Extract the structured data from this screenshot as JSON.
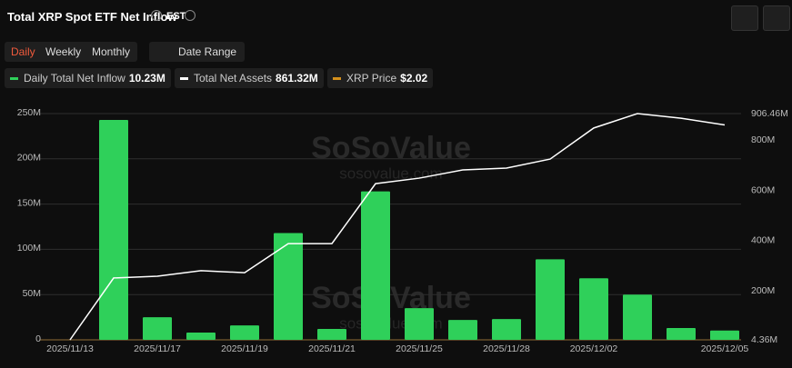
{
  "header": {
    "title": "Total XRP Spot ETF Net Inflow",
    "timezone": "EST"
  },
  "controls": {
    "periods": [
      "Daily",
      "Weekly",
      "Monthly"
    ],
    "date_range": "Date Range"
  },
  "chart_data": {
    "type": "bar",
    "watermark": [
      "SoSoValue",
      "sosovalue.com"
    ],
    "categories": [
      "2025/11/13",
      null,
      "2025/11/17",
      null,
      "2025/11/19",
      null,
      "2025/11/21",
      null,
      "2025/11/25",
      null,
      "2025/11/28",
      null,
      "2025/12/02",
      null,
      null,
      "2025/12/05"
    ],
    "series": [
      {
        "name": "Daily Total Net Inflow",
        "type": "bar",
        "color": "#2fd05a",
        "legend_value": "10.23M",
        "values": [
          0,
          243,
          25,
          8,
          16,
          118,
          12,
          164,
          35,
          22,
          23,
          89,
          68,
          50,
          13,
          10.23
        ]
      },
      {
        "name": "Total Net Assets",
        "type": "line",
        "axis": "y2",
        "color": "#ffffff",
        "legend_value": "861.32M",
        "values": [
          4.36,
          251,
          258,
          280,
          272,
          388,
          388,
          627,
          649,
          682,
          689,
          725,
          849,
          906.46,
          888,
          861.32
        ]
      },
      {
        "name": "XRP Price",
        "type": "price",
        "color": "#d4901c",
        "legend_value": "$2.02"
      }
    ],
    "ylim": [
      0,
      250
    ],
    "yticks": [
      0,
      {
        "value": 50,
        "label": "50M"
      },
      {
        "value": 100,
        "label": "100M"
      },
      {
        "value": 150,
        "label": "150M"
      },
      {
        "value": 200,
        "label": "200M"
      },
      {
        "value": 250,
        "label": "250M"
      }
    ],
    "y2lim": [
      4.36,
      906.46
    ],
    "y2ticks": [
      {
        "value": 4.36,
        "label": "4.36M"
      },
      {
        "value": 200,
        "label": "200M"
      },
      {
        "value": 400,
        "label": "400M"
      },
      {
        "value": 600,
        "label": "600M"
      },
      {
        "value": 800,
        "label": "800M"
      },
      {
        "value": 906.46,
        "label": "906.46M"
      }
    ],
    "grid": true
  }
}
